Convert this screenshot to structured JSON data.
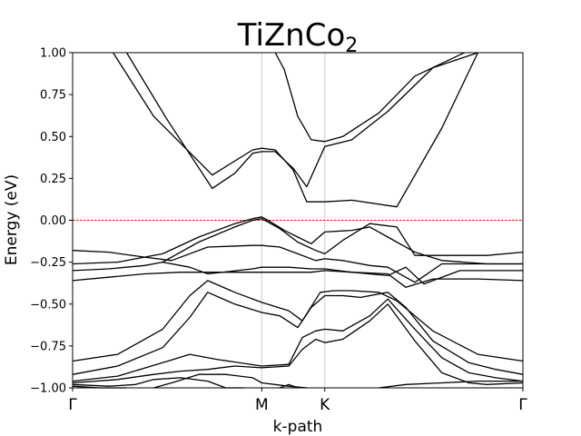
{
  "chart_data": {
    "type": "line",
    "title": "TiZnCo",
    "title_subscript": "2",
    "xlabel": "k-path",
    "ylabel": "Energy (eV)",
    "ylim": [
      -1.0,
      1.0
    ],
    "xlim": [
      0,
      1
    ],
    "grid": false,
    "y_ticks": [
      -1.0,
      -0.75,
      -0.5,
      -0.25,
      0.0,
      0.25,
      0.5,
      0.75,
      1.0
    ],
    "y_tick_labels": [
      "−1.00",
      "−0.75",
      "−0.50",
      "−0.25",
      "0.00",
      "0.25",
      "0.50",
      "0.75",
      "1.00"
    ],
    "k_points": [
      {
        "label": "Γ",
        "x": 0.0
      },
      {
        "label": "M",
        "x": 0.42
      },
      {
        "label": "K",
        "x": 0.56
      },
      {
        "label": "Γ",
        "x": 1.0
      }
    ],
    "fermi_level": {
      "y": 0.0,
      "color": "#ff0000"
    },
    "line_color": "#000000",
    "series": [
      {
        "x": [
          0.09,
          0.18,
          0.31,
          0.4,
          0.42,
          0.45,
          0.49,
          0.52,
          0.56,
          0.62,
          0.72,
          0.82,
          0.9
        ],
        "y": [
          1.0,
          0.62,
          0.27,
          0.42,
          0.43,
          0.42,
          0.3,
          0.11,
          0.11,
          0.12,
          0.08,
          0.55,
          1.0
        ]
      },
      {
        "x": [
          0.12,
          0.21,
          0.31,
          0.36,
          0.4,
          0.42,
          0.45,
          0.49,
          0.52,
          0.56,
          0.62,
          0.7,
          0.8,
          0.9
        ],
        "y": [
          1.0,
          0.6,
          0.19,
          0.28,
          0.4,
          0.41,
          0.41,
          0.31,
          0.2,
          0.44,
          0.48,
          0.65,
          0.91,
          1.0
        ]
      },
      {
        "x": [
          0.45,
          0.47,
          0.5,
          0.53,
          0.56,
          0.6,
          0.68,
          0.76,
          0.87
        ],
        "y": [
          1.0,
          0.9,
          0.62,
          0.48,
          0.47,
          0.5,
          0.64,
          0.86,
          1.0
        ]
      },
      {
        "x": [
          0.2,
          0.28,
          0.36,
          0.4,
          0.42,
          0.46,
          0.5,
          0.54,
          0.56,
          0.6,
          0.66,
          0.72,
          0.76,
          0.82,
          0.92,
          1.0
        ],
        "y": [
          -0.25,
          -0.13,
          -0.04,
          0.0,
          0.01,
          -0.05,
          -0.13,
          -0.18,
          -0.2,
          -0.12,
          -0.02,
          -0.04,
          -0.21,
          -0.21,
          -0.21,
          -0.19
        ]
      },
      {
        "x": [
          0.0,
          0.1,
          0.2,
          0.28,
          0.36,
          0.4,
          0.42,
          0.44,
          0.47,
          0.5,
          0.53,
          0.56,
          0.62,
          0.66,
          0.7,
          0.76,
          0.82,
          0.92,
          1.0
        ],
        "y": [
          -0.26,
          -0.25,
          -0.2,
          -0.1,
          -0.02,
          0.01,
          0.02,
          -0.01,
          -0.06,
          -0.1,
          -0.14,
          -0.07,
          -0.06,
          -0.04,
          -0.1,
          -0.19,
          -0.24,
          -0.26,
          -0.26
        ]
      },
      {
        "x": [
          0.0,
          0.08,
          0.16,
          0.22,
          0.3,
          0.4,
          0.42,
          0.46,
          0.5,
          0.54,
          0.56,
          0.6,
          0.66,
          0.7,
          0.76,
          0.82,
          0.92,
          1.0
        ],
        "y": [
          -0.18,
          -0.19,
          -0.22,
          -0.24,
          -0.16,
          -0.15,
          -0.15,
          -0.16,
          -0.2,
          -0.24,
          -0.23,
          -0.24,
          -0.27,
          -0.28,
          -0.37,
          -0.26,
          -0.26,
          -0.26
        ]
      },
      {
        "x": [
          0.0,
          0.08,
          0.16,
          0.2,
          0.26,
          0.3,
          0.4,
          0.42,
          0.48,
          0.53,
          0.56,
          0.62,
          0.7,
          0.74,
          0.78,
          0.86,
          0.94,
          1.0
        ],
        "y": [
          -0.3,
          -0.29,
          -0.27,
          -0.25,
          -0.28,
          -0.32,
          -0.29,
          -0.28,
          -0.28,
          -0.29,
          -0.29,
          -0.31,
          -0.33,
          -0.28,
          -0.38,
          -0.3,
          -0.3,
          -0.3
        ]
      },
      {
        "x": [
          0.0,
          0.08,
          0.16,
          0.24,
          0.3,
          0.4,
          0.42,
          0.48,
          0.53,
          0.56,
          0.62,
          0.7,
          0.74,
          0.8,
          0.9,
          1.0
        ],
        "y": [
          -0.36,
          -0.34,
          -0.32,
          -0.31,
          -0.31,
          -0.31,
          -0.31,
          -0.31,
          -0.31,
          -0.3,
          -0.31,
          -0.32,
          -0.4,
          -0.35,
          -0.35,
          -0.36
        ]
      },
      {
        "x": [
          0.0,
          0.1,
          0.2,
          0.26,
          0.3,
          0.36,
          0.42,
          0.48,
          0.51,
          0.55,
          0.58,
          0.62,
          0.68,
          0.72,
          0.8,
          0.9,
          1.0
        ],
        "y": [
          -0.84,
          -0.8,
          -0.65,
          -0.45,
          -0.36,
          -0.43,
          -0.49,
          -0.54,
          -0.6,
          -0.43,
          -0.42,
          -0.42,
          -0.43,
          -0.48,
          -0.66,
          -0.8,
          -0.84
        ]
      },
      {
        "x": [
          0.0,
          0.1,
          0.2,
          0.26,
          0.3,
          0.36,
          0.42,
          0.46,
          0.5,
          0.53,
          0.56,
          0.6,
          0.64,
          0.7,
          0.74,
          0.8,
          0.88,
          0.94,
          1.0
        ],
        "y": [
          -0.92,
          -0.87,
          -0.76,
          -0.58,
          -0.43,
          -0.5,
          -0.55,
          -0.57,
          -0.64,
          -0.52,
          -0.45,
          -0.45,
          -0.46,
          -0.43,
          -0.52,
          -0.72,
          -0.85,
          -0.89,
          -0.92
        ]
      },
      {
        "x": [
          0.0,
          0.1,
          0.2,
          0.26,
          0.32,
          0.42,
          0.48,
          0.51,
          0.54,
          0.56,
          0.6,
          0.66,
          0.7,
          0.76,
          0.82,
          0.88,
          0.94,
          1.0
        ],
        "y": [
          -0.96,
          -0.93,
          -0.85,
          -0.8,
          -0.83,
          -0.87,
          -0.86,
          -0.7,
          -0.66,
          -0.65,
          -0.66,
          -0.57,
          -0.47,
          -0.65,
          -0.82,
          -0.91,
          -0.94,
          -0.96
        ]
      },
      {
        "x": [
          0.0,
          0.1,
          0.18,
          0.24,
          0.3,
          0.36,
          0.42,
          0.48,
          0.51,
          0.54,
          0.56,
          0.6,
          0.66,
          0.7,
          0.76,
          0.82,
          0.88,
          0.92,
          1.0
        ],
        "y": [
          -0.97,
          -0.95,
          -0.92,
          -0.9,
          -0.89,
          -0.87,
          -0.88,
          -0.87,
          -0.77,
          -0.71,
          -0.73,
          -0.71,
          -0.6,
          -0.5,
          -0.72,
          -0.91,
          -0.97,
          -0.98,
          -0.97
        ]
      },
      {
        "x": [
          0.0,
          0.08,
          0.14,
          0.18,
          0.24,
          0.3,
          0.34,
          0.38
        ],
        "y": [
          -0.98,
          -0.99,
          -0.98,
          -0.95,
          -0.94,
          -0.96,
          -1.0,
          -1.0
        ]
      },
      {
        "x": [
          0.0,
          0.06,
          0.1,
          0.12
        ],
        "y": [
          -0.99,
          -1.0,
          -1.0,
          -1.0
        ]
      },
      {
        "x": [
          0.18,
          0.22,
          0.28,
          0.34,
          0.4,
          0.42,
          0.48,
          0.52
        ],
        "y": [
          -1.0,
          -0.97,
          -0.92,
          -0.92,
          -0.94,
          -0.97,
          -0.99,
          -1.0
        ]
      },
      {
        "x": [
          0.46,
          0.48,
          0.5
        ],
        "y": [
          -1.0,
          -0.98,
          -1.0
        ]
      },
      {
        "x": [
          0.68,
          0.74,
          0.82,
          0.9,
          1.0
        ],
        "y": [
          -1.0,
          -0.98,
          -0.97,
          -0.96,
          -0.96
        ]
      }
    ]
  }
}
